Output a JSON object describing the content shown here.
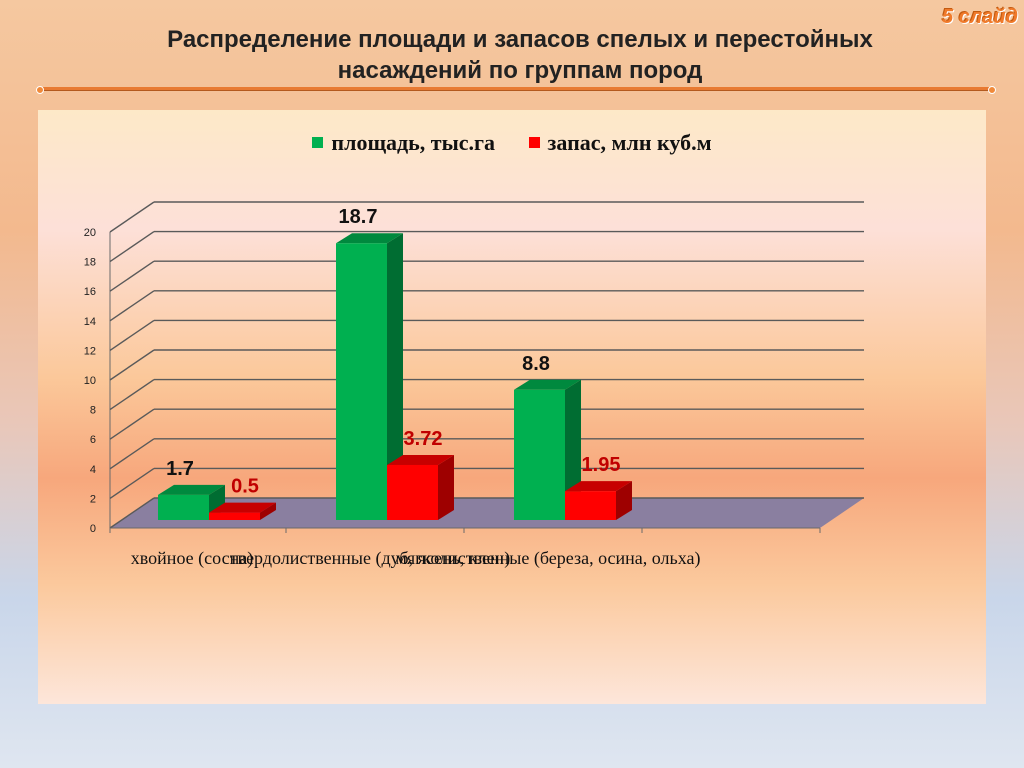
{
  "slide_badge": "5 слайд",
  "title_line1": "Распределение площади и запасов спелых и перестойных",
  "title_line2": "насаждений по группам пород",
  "colors": {
    "area": "#00b050",
    "stock": "#ff0000",
    "stock_label": "#c00000",
    "floor": "#8a7fa0"
  },
  "chart_data": {
    "type": "bar",
    "categories": [
      "хвойное (сосна)",
      "твердолиственные (дуб, ясень, клен)",
      "мягколиственные (береза, осина, ольха)"
    ],
    "series": [
      {
        "name": "площадь, тыс.га",
        "values": [
          1.7,
          18.7,
          8.8
        ]
      },
      {
        "name": "запас, млн куб.м",
        "values": [
          0.5,
          3.72,
          1.95
        ]
      }
    ],
    "ylim": [
      0,
      20
    ],
    "yticks": [
      0,
      2,
      4,
      6,
      8,
      10,
      12,
      14,
      16,
      18,
      20
    ],
    "grid": true,
    "legend_position": "top",
    "data_labels": [
      "1.7",
      "0.5",
      "18.7",
      "3.72",
      "8.8",
      "1.95"
    ]
  }
}
